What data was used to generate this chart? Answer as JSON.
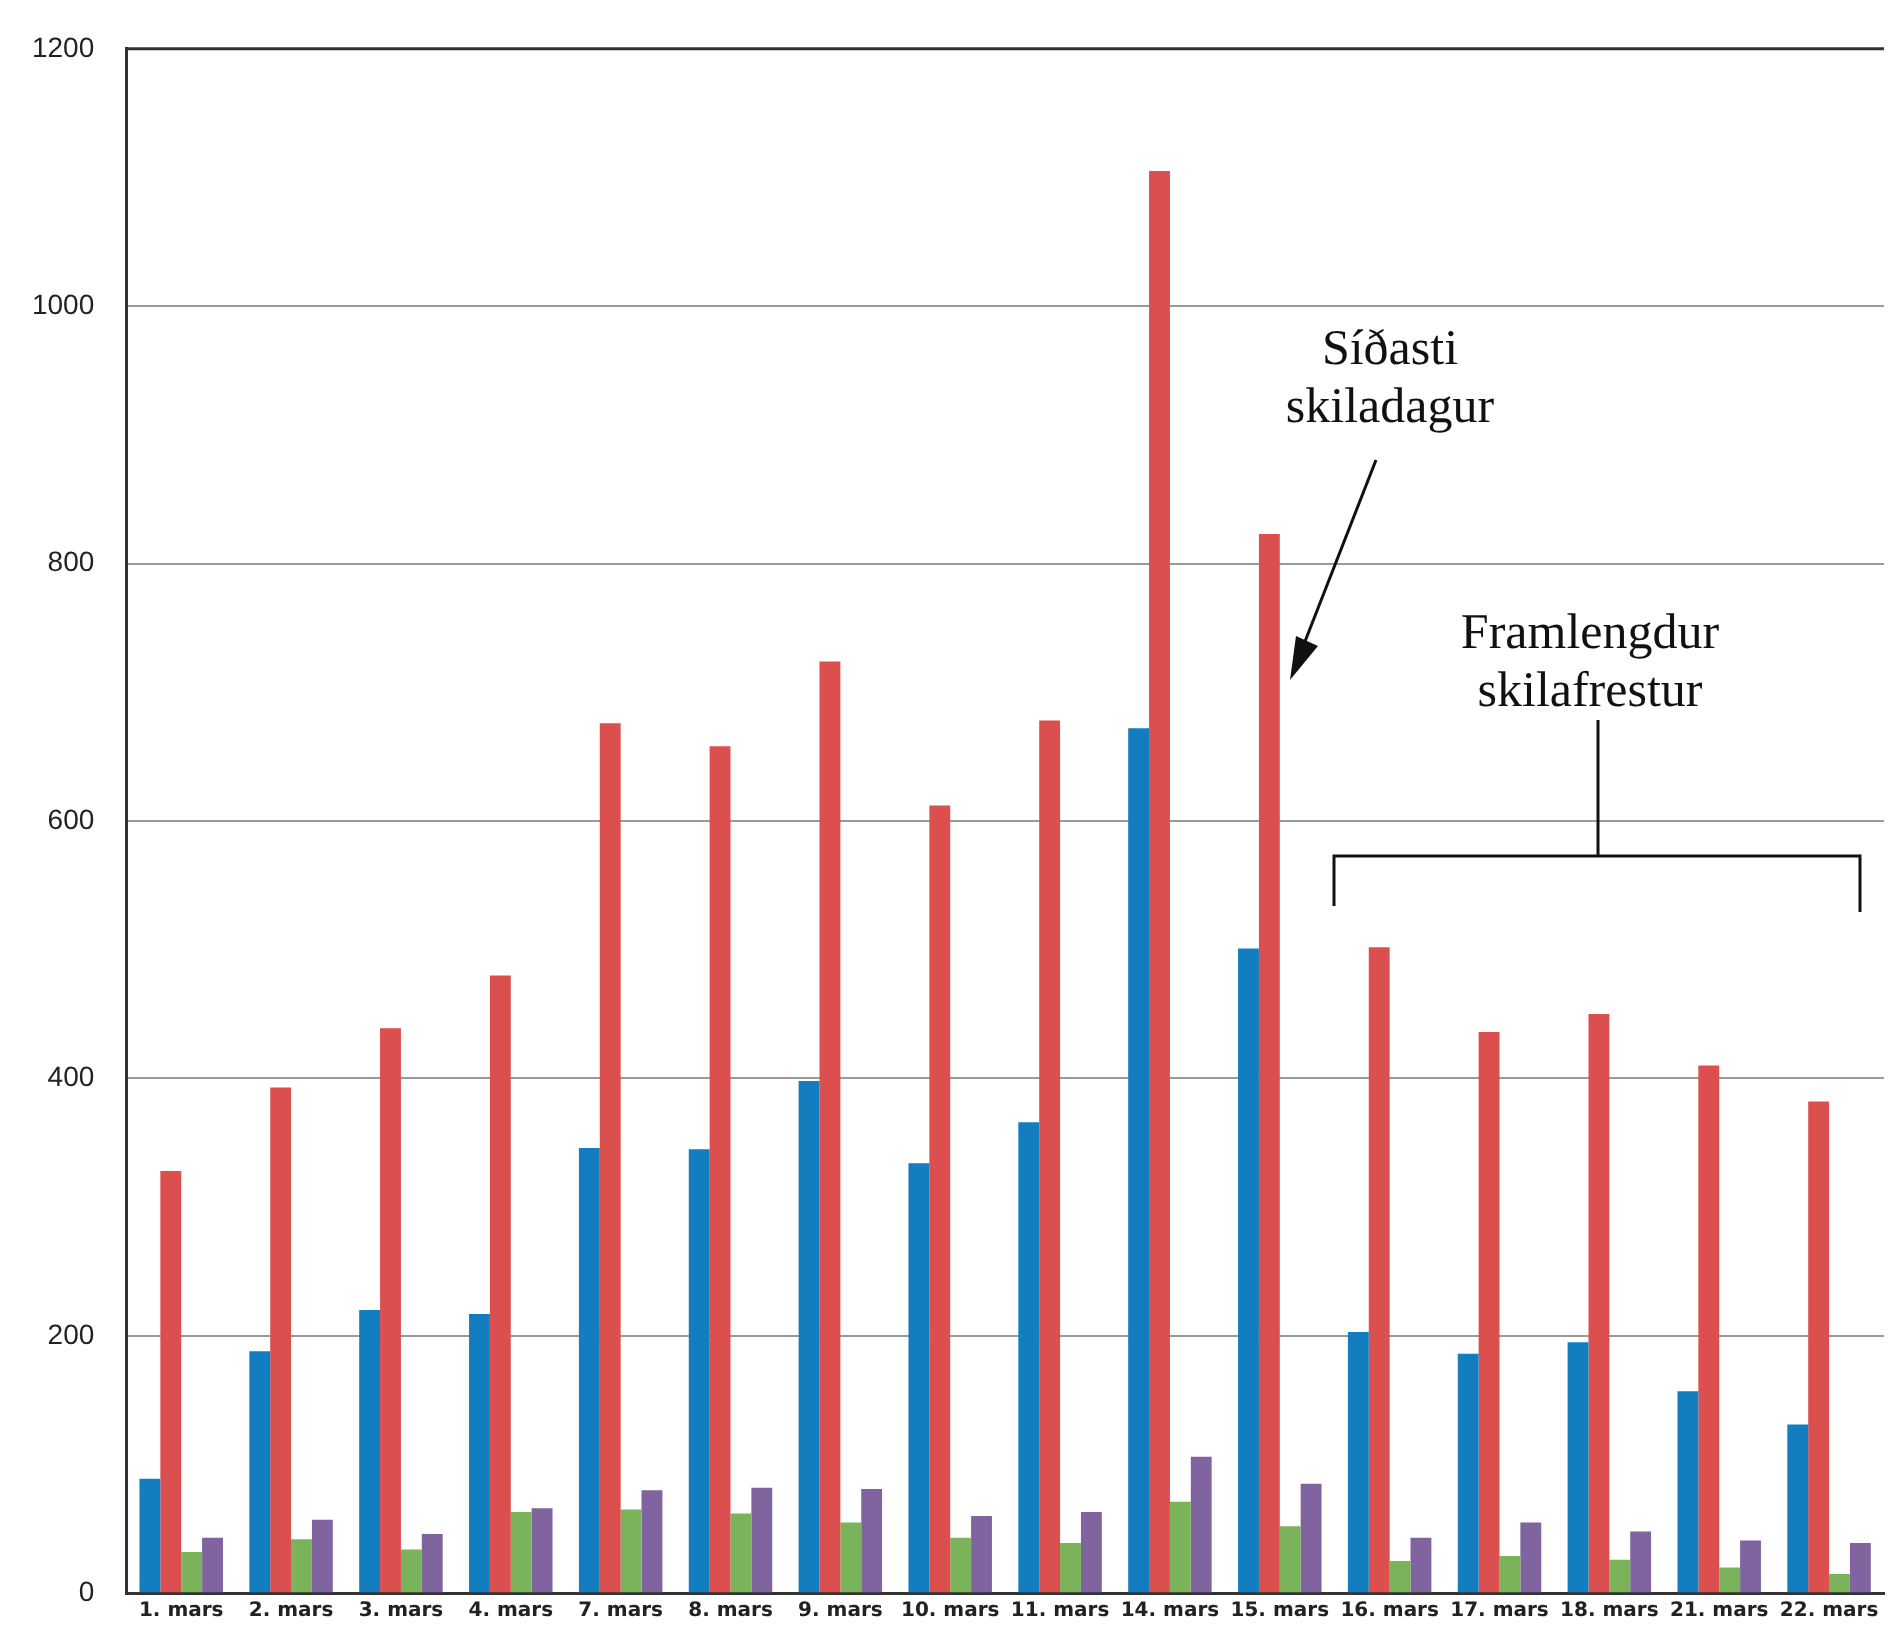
{
  "chart_data": {
    "type": "bar",
    "categories": [
      "1. mars",
      "2. mars",
      "3. mars",
      "4. mars",
      "7. mars",
      "8. mars",
      "9. mars",
      "10. mars",
      "11. mars",
      "14. mars",
      "15. mars",
      "16. mars",
      "17. mars",
      "18. mars",
      "21. mars",
      "22. mars"
    ],
    "series": [
      {
        "color": "#127ec0",
        "values": [
          89,
          188,
          220,
          217,
          346,
          345,
          398,
          334,
          366,
          672,
          501,
          203,
          186,
          195,
          157,
          131
        ]
      },
      {
        "color": "#dc4f4f",
        "values": [
          328,
          393,
          439,
          480,
          676,
          658,
          724,
          612,
          678,
          1105,
          823,
          502,
          436,
          450,
          410,
          382
        ]
      },
      {
        "color": "#7bb35a",
        "values": [
          32,
          42,
          34,
          63,
          65,
          62,
          55,
          43,
          39,
          71,
          52,
          25,
          29,
          26,
          20,
          15
        ]
      },
      {
        "color": "#7f64a0",
        "values": [
          43,
          57,
          46,
          66,
          80,
          82,
          81,
          60,
          63,
          106,
          85,
          43,
          55,
          48,
          41,
          39
        ]
      }
    ],
    "ylim": [
      0,
      1200
    ],
    "yticks": [
      0,
      200,
      400,
      600,
      800,
      1000,
      1200
    ],
    "grid": "y",
    "legend": false,
    "annotations": [
      "Síðasti skiladagur",
      "Framlengdur skilafrestur"
    ]
  }
}
